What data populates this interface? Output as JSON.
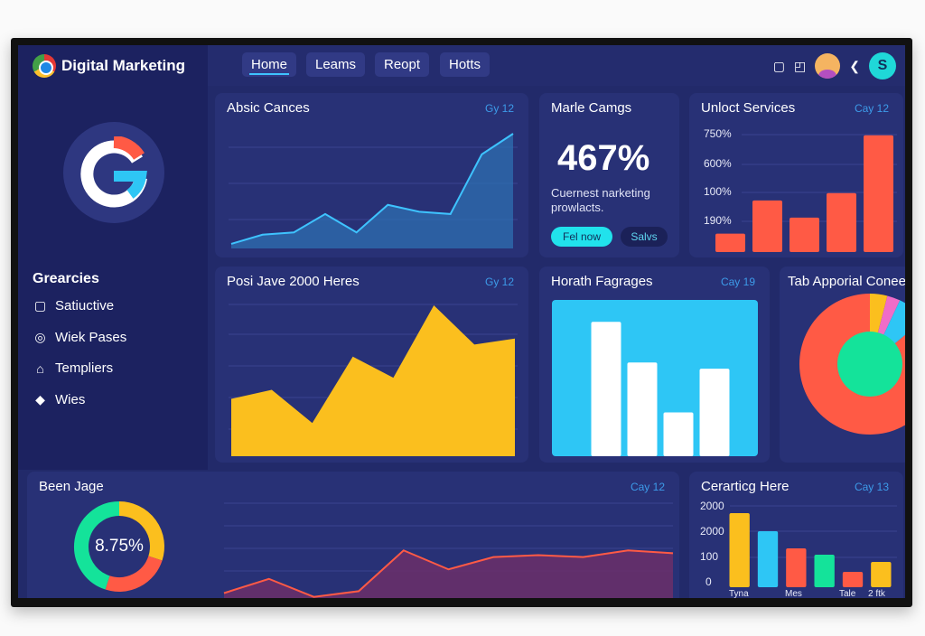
{
  "app": {
    "title": "Digital Marketing"
  },
  "nav": {
    "tabs": [
      {
        "label": "Home",
        "active": true
      },
      {
        "label": "Leams"
      },
      {
        "label": "Reopt"
      },
      {
        "label": "Hotts"
      }
    ]
  },
  "header_icons": [
    "tablet-icon",
    "edit-icon",
    "avatar",
    "chevron-left-icon"
  ],
  "user_initial": "S",
  "sidebar": {
    "section_title": "Grearcies",
    "items": [
      {
        "label": "Satiuctive",
        "icon": "bookmark-icon"
      },
      {
        "label": "Wiek Pases",
        "icon": "clock-icon"
      },
      {
        "label": "Templiers",
        "icon": "bag-icon"
      },
      {
        "label": "Wies",
        "icon": "gem-icon"
      }
    ]
  },
  "colors": {
    "background": "#222a6a",
    "card": "#283176",
    "accent": "#3ec3ff",
    "yellow": "#fbbf1e",
    "red": "#ff5a45",
    "cyan": "#2ec6f5",
    "green": "#14e39a"
  },
  "cards": {
    "absic": {
      "title": "Absic Cances",
      "badge": "Gy 12"
    },
    "marle": {
      "title": "Marle Camgs",
      "value": "467%",
      "desc1": "Cuernest narketing",
      "desc2": "prowlacts.",
      "btn_primary": "Fel now",
      "btn_secondary": "Salvs"
    },
    "unloct": {
      "title": "Unloct Services",
      "badge": "Cay 12",
      "ticks": [
        "750%",
        "600%",
        "100%",
        "190%"
      ]
    },
    "posi": {
      "title": "Posi Jave 2000 Heres",
      "badge": "Gy 12"
    },
    "horath": {
      "title": "Horath Fagrages",
      "badge": "Cay 19"
    },
    "tab": {
      "title": "Tab Apporial Conee"
    },
    "been": {
      "title": "Been Jage",
      "badge": "Cay 12",
      "donut_value": "8.75%"
    },
    "cerarticg": {
      "title": "Cerarticg Here",
      "badge": "Cay 13",
      "ticks": [
        "2000",
        "2000",
        "100",
        "0"
      ],
      "xlabels": [
        "Tyna",
        "Mes",
        "Tale",
        "2 ftk"
      ]
    }
  },
  "chart_data": [
    {
      "id": "absic",
      "type": "area",
      "values": [
        4,
        12,
        14,
        30,
        14,
        38,
        32,
        30,
        82,
        100
      ],
      "ylim": [
        0,
        100
      ]
    },
    {
      "id": "unloct",
      "type": "bar",
      "values": [
        15,
        42,
        28,
        48,
        95
      ],
      "ylim": [
        0,
        100
      ]
    },
    {
      "id": "posi",
      "type": "area",
      "values": [
        38,
        44,
        22,
        66,
        52,
        100,
        74,
        78
      ],
      "ylim": [
        0,
        100
      ]
    },
    {
      "id": "horath",
      "type": "bar",
      "values": [
        86,
        60,
        28,
        56
      ],
      "ylim": [
        0,
        100
      ]
    },
    {
      "id": "tab",
      "type": "pie",
      "values": [
        86,
        4,
        3,
        7
      ],
      "colors": [
        "#ff5a45",
        "#fbbf1e",
        "#f06cc8",
        "#2ec6f5"
      ]
    },
    {
      "id": "been",
      "type": "donut",
      "values": [
        30,
        25,
        45
      ],
      "colors": [
        "#fbbf1e",
        "#ff5a45",
        "#14e39a"
      ]
    },
    {
      "id": "bottom",
      "type": "area",
      "values": [
        10,
        25,
        6,
        12,
        55,
        35,
        48,
        50,
        48,
        55,
        52
      ],
      "ylim": [
        0,
        100
      ]
    },
    {
      "id": "cerarticg",
      "type": "bar",
      "values": [
        82,
        62,
        43,
        36,
        17,
        28
      ],
      "colors": [
        "#fbbf1e",
        "#2ec6f5",
        "#ff5a45",
        "#14e39a",
        "#ff5a45",
        "#fbbf1e"
      ],
      "ylim": [
        0,
        100
      ]
    }
  ]
}
